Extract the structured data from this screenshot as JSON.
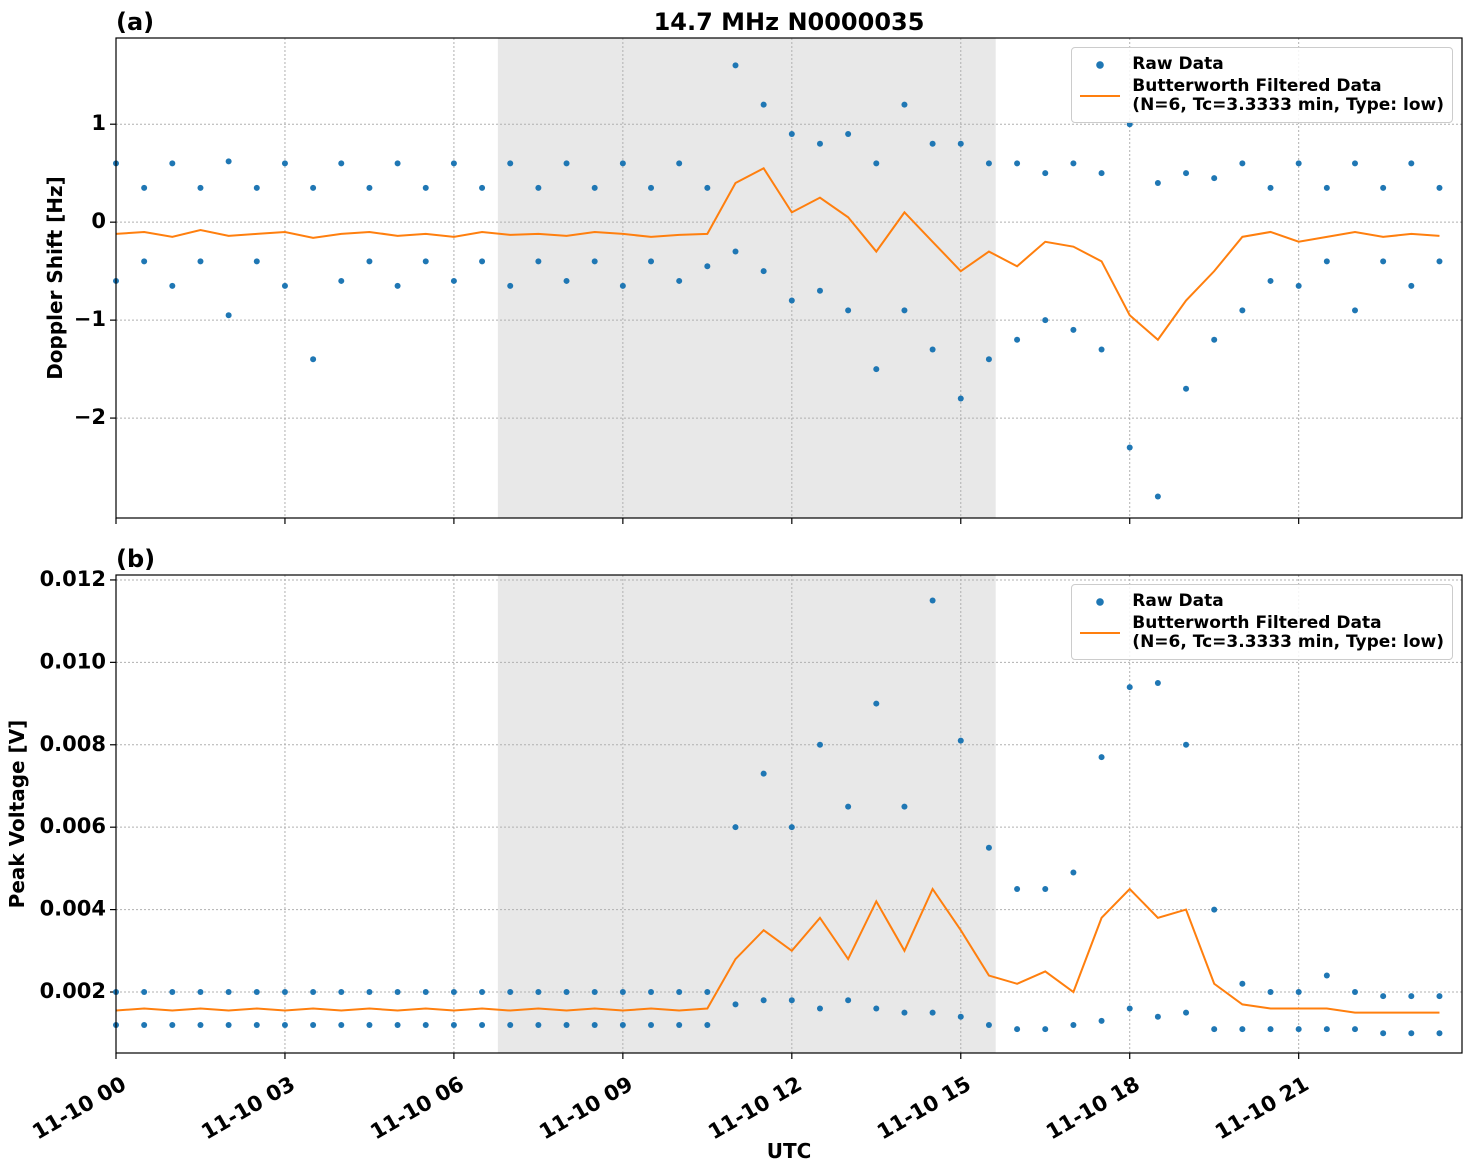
{
  "chart_data": [
    {
      "type": "scatter",
      "panel_label": "(a)",
      "title": "14.7 MHz N0000035",
      "ylabel": "Doppler Shift [Hz]",
      "xlim": [
        0,
        23.9
      ],
      "ylim": [
        -3.02,
        1.88
      ],
      "xticks": [
        0,
        3,
        6,
        9,
        12,
        15,
        18,
        21
      ],
      "xticklabels": false,
      "yticks": [
        {
          "value": -2,
          "label": "−2"
        },
        {
          "value": -1,
          "label": "−1"
        },
        0,
        1
      ],
      "grid": true,
      "shade": [
        6.78,
        15.62
      ],
      "legend": "upper right",
      "series": [
        {
          "name": "Raw Data",
          "style": "markers",
          "color": "#1f77b4",
          "x": [
            0,
            0,
            0.5,
            0.5,
            1,
            1,
            1.5,
            1.5,
            2,
            2,
            2.5,
            2.5,
            3,
            3,
            3.5,
            3.5,
            4,
            4,
            4.5,
            4.5,
            5,
            5,
            5.5,
            5.5,
            6,
            6,
            6.5,
            6.5,
            7,
            7,
            7.5,
            7.5,
            8,
            8,
            8.5,
            8.5,
            9,
            9,
            9.5,
            9.5,
            10,
            10,
            10.5,
            10.5,
            11,
            11,
            11.5,
            11.5,
            12,
            12,
            12.5,
            12.5,
            13,
            13,
            13.5,
            13.5,
            14,
            14,
            14.5,
            14.5,
            15,
            15,
            15.5,
            15.5,
            16,
            16,
            16.5,
            16.5,
            17,
            17,
            17.5,
            17.5,
            18,
            18,
            18.5,
            18.5,
            19,
            19,
            19.5,
            19.5,
            20,
            20,
            20.5,
            20.5,
            21,
            21,
            21.5,
            21.5,
            22,
            22,
            22.5,
            22.5,
            23,
            23,
            23.5,
            23.5
          ],
          "values": [
            0.6,
            -0.6,
            0.35,
            -0.4,
            0.6,
            -0.65,
            0.35,
            -0.4,
            0.62,
            -0.95,
            0.35,
            -0.4,
            0.6,
            -0.65,
            0.35,
            -1.4,
            0.6,
            -0.6,
            0.35,
            -0.4,
            0.6,
            -0.65,
            0.35,
            -0.4,
            0.6,
            -0.6,
            0.35,
            -0.4,
            0.6,
            -0.65,
            0.35,
            -0.4,
            0.6,
            -0.6,
            0.35,
            -0.4,
            0.6,
            -0.65,
            0.35,
            -0.4,
            0.6,
            -0.6,
            0.35,
            -0.45,
            1.6,
            -0.3,
            1.2,
            -0.5,
            0.9,
            -0.8,
            0.8,
            -0.7,
            0.9,
            -0.9,
            0.6,
            -1.5,
            1.2,
            -0.9,
            0.8,
            -1.3,
            0.8,
            -1.8,
            0.6,
            -1.4,
            0.6,
            -1.2,
            0.5,
            -1.0,
            0.6,
            -1.1,
            0.5,
            -1.3,
            1.0,
            -2.3,
            0.4,
            -2.8,
            0.5,
            -1.7,
            0.45,
            -1.2,
            0.6,
            -0.9,
            0.35,
            -0.6,
            0.6,
            -0.65,
            0.35,
            -0.4,
            0.6,
            -0.9,
            0.35,
            -0.4,
            0.6,
            -0.65,
            0.35,
            -0.4
          ]
        },
        {
          "name": "Butterworth Filtered Data\n(N=6, Tc=3.3333 min, Type: low)",
          "style": "line",
          "color": "#ff7f0e",
          "x": [
            0,
            0.5,
            1,
            1.5,
            2,
            2.5,
            3,
            3.5,
            4,
            4.5,
            5,
            5.5,
            6,
            6.5,
            7,
            7.5,
            8,
            8.5,
            9,
            9.5,
            10,
            10.5,
            11,
            11.5,
            12,
            12.5,
            13,
            13.5,
            14,
            14.5,
            15,
            15.5,
            16,
            16.5,
            17,
            17.5,
            18,
            18.5,
            19,
            19.5,
            20,
            20.5,
            21,
            21.5,
            22,
            22.5,
            23,
            23.5
          ],
          "values": [
            -0.12,
            -0.1,
            -0.15,
            -0.08,
            -0.14,
            -0.12,
            -0.1,
            -0.16,
            -0.12,
            -0.1,
            -0.14,
            -0.12,
            -0.15,
            -0.1,
            -0.13,
            -0.12,
            -0.14,
            -0.1,
            -0.12,
            -0.15,
            -0.13,
            -0.12,
            0.4,
            0.55,
            0.1,
            0.25,
            0.05,
            -0.3,
            0.1,
            -0.2,
            -0.5,
            -0.3,
            -0.45,
            -0.2,
            -0.25,
            -0.4,
            -0.95,
            -1.2,
            -0.8,
            -0.5,
            -0.15,
            -0.1,
            -0.2,
            -0.15,
            -0.1,
            -0.15,
            -0.12,
            -0.14
          ]
        }
      ]
    },
    {
      "type": "scatter",
      "panel_label": "(b)",
      "ylabel": "Peak Voltage [V]",
      "xlabel": "UTC",
      "xlim": [
        0,
        23.9
      ],
      "ylim": [
        0.00052,
        0.01212
      ],
      "xticks": [
        {
          "value": 0,
          "label": "11-10 00"
        },
        {
          "value": 3,
          "label": "11-10 03"
        },
        {
          "value": 6,
          "label": "11-10 06"
        },
        {
          "value": 9,
          "label": "11-10 09"
        },
        {
          "value": 12,
          "label": "11-10 12"
        },
        {
          "value": 15,
          "label": "11-10 15"
        },
        {
          "value": 18,
          "label": "11-10 18"
        },
        {
          "value": 21,
          "label": "11-10 21"
        }
      ],
      "xticklabels": true,
      "yticks": [
        0.002,
        0.004,
        0.006,
        0.008,
        {
          "value": 0.01,
          "label": "0.010"
        },
        0.012
      ],
      "grid": true,
      "shade": [
        6.78,
        15.62
      ],
      "legend": "upper right",
      "series": [
        {
          "name": "Raw Data",
          "style": "markers",
          "color": "#1f77b4",
          "x": [
            0,
            0,
            0.5,
            0.5,
            1,
            1,
            1.5,
            1.5,
            2,
            2,
            2.5,
            2.5,
            3,
            3,
            3.5,
            3.5,
            4,
            4,
            4.5,
            4.5,
            5,
            5,
            5.5,
            5.5,
            6,
            6,
            6.5,
            6.5,
            7,
            7,
            7.5,
            7.5,
            8,
            8,
            8.5,
            8.5,
            9,
            9,
            9.5,
            9.5,
            10,
            10,
            10.5,
            10.5,
            11,
            11,
            11.5,
            11.5,
            12,
            12,
            12.5,
            12.5,
            13,
            13,
            13.5,
            13.5,
            14,
            14,
            14.5,
            14.5,
            15,
            15,
            15.5,
            15.5,
            16,
            16,
            16.5,
            16.5,
            17,
            17,
            17.5,
            17.5,
            18,
            18,
            18.5,
            18.5,
            19,
            19,
            19.5,
            19.5,
            20,
            20,
            20.5,
            20.5,
            21,
            21,
            21.5,
            21.5,
            22,
            22,
            22.5,
            22.5,
            23,
            23,
            23.5,
            23.5
          ],
          "values": [
            0.002,
            0.0012,
            0.002,
            0.0012,
            0.002,
            0.0012,
            0.002,
            0.0012,
            0.002,
            0.0012,
            0.002,
            0.0012,
            0.002,
            0.0012,
            0.002,
            0.0012,
            0.002,
            0.0012,
            0.002,
            0.0012,
            0.002,
            0.0012,
            0.002,
            0.0012,
            0.002,
            0.0012,
            0.002,
            0.0012,
            0.002,
            0.0012,
            0.002,
            0.0012,
            0.002,
            0.0012,
            0.002,
            0.0012,
            0.002,
            0.0012,
            0.002,
            0.0012,
            0.002,
            0.0012,
            0.002,
            0.0012,
            0.006,
            0.0017,
            0.0073,
            0.0018,
            0.006,
            0.0018,
            0.008,
            0.0016,
            0.0065,
            0.0018,
            0.009,
            0.0016,
            0.0065,
            0.0015,
            0.0115,
            0.0015,
            0.0081,
            0.0014,
            0.0055,
            0.0012,
            0.0045,
            0.0011,
            0.0045,
            0.0011,
            0.0049,
            0.0012,
            0.0077,
            0.0013,
            0.0094,
            0.0016,
            0.0095,
            0.0014,
            0.008,
            0.0015,
            0.004,
            0.0011,
            0.0022,
            0.0011,
            0.002,
            0.0011,
            0.002,
            0.0011,
            0.0024,
            0.0011,
            0.002,
            0.0011,
            0.0019,
            0.001,
            0.0019,
            0.001,
            0.0019,
            0.001
          ]
        },
        {
          "name": "Butterworth Filtered Data\n(N=6, Tc=3.3333 min, Type: low)",
          "style": "line",
          "color": "#ff7f0e",
          "x": [
            0,
            0.5,
            1,
            1.5,
            2,
            2.5,
            3,
            3.5,
            4,
            4.5,
            5,
            5.5,
            6,
            6.5,
            7,
            7.5,
            8,
            8.5,
            9,
            9.5,
            10,
            10.5,
            11,
            11.5,
            12,
            12.5,
            13,
            13.5,
            14,
            14.5,
            15,
            15.5,
            16,
            16.5,
            17,
            17.5,
            18,
            18.5,
            19,
            19.5,
            20,
            20.5,
            21,
            21.5,
            22,
            22.5,
            23,
            23.5
          ],
          "values": [
            0.00155,
            0.0016,
            0.00155,
            0.0016,
            0.00155,
            0.0016,
            0.00155,
            0.0016,
            0.00155,
            0.0016,
            0.00155,
            0.0016,
            0.00155,
            0.0016,
            0.00155,
            0.0016,
            0.00155,
            0.0016,
            0.00155,
            0.0016,
            0.00155,
            0.0016,
            0.0028,
            0.0035,
            0.003,
            0.0038,
            0.0028,
            0.0042,
            0.003,
            0.0045,
            0.0035,
            0.0024,
            0.0022,
            0.0025,
            0.002,
            0.0038,
            0.0045,
            0.0038,
            0.004,
            0.0022,
            0.0017,
            0.0016,
            0.0016,
            0.0016,
            0.0015,
            0.0015,
            0.0015,
            0.0015
          ]
        }
      ]
    }
  ]
}
